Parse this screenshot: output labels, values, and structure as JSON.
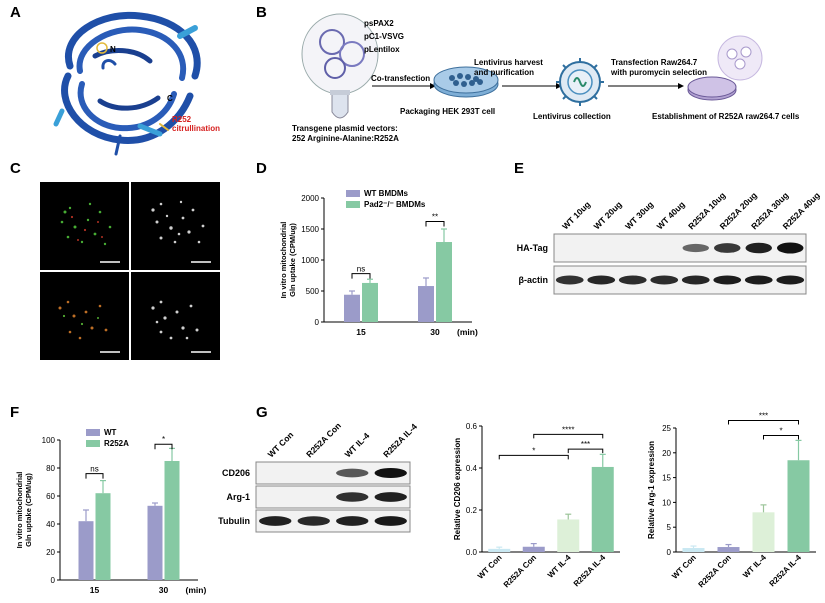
{
  "panels": {
    "A": {
      "letter": "A",
      "labels": {
        "n_term": "N",
        "c_term": "C",
        "site": "R252",
        "site_mod": "citrullination"
      },
      "colors": {
        "protein": "#1f4fa8",
        "highlight": "#3aa0d8",
        "label_red": "#d6201f"
      }
    },
    "B": {
      "letter": "B",
      "plasmids": [
        "psPAX2",
        "pC1-VSVG",
        "pLentilox"
      ],
      "tube_caption": [
        "Transgene plasmid vectors:",
        "252 Arginine-Alanine:R252A"
      ],
      "step1_arrow": "Co-transfection",
      "step2_caption": "Packaging HEK 293T cell",
      "step2_arrow": [
        "Lentivirus harvest",
        "and purification"
      ],
      "step3_caption": "Lentivirus collection",
      "step3_arrow": [
        "Transfection Raw264.7",
        "with puromycin selection"
      ],
      "step4_caption": "Establishment of R252A raw264.7 cells"
    },
    "C": {
      "letter": "C"
    },
    "D": {
      "letter": "D"
    },
    "E": {
      "letter": "E",
      "lanes": [
        "WT 10ug",
        "WT 20ug",
        "WT 30ug",
        "WT 40ug",
        "R252A 10ug",
        "R252A 20ug",
        "R252A 30ug",
        "R252A 40ug"
      ],
      "rows": [
        "HA-Tag",
        "β-actin"
      ],
      "ha_intensity": [
        0,
        0,
        0,
        0,
        0.45,
        0.75,
        0.9,
        1.0
      ],
      "actin_intensity": [
        0.85,
        0.9,
        0.88,
        0.88,
        0.9,
        0.95,
        0.95,
        0.95
      ]
    },
    "F": {
      "letter": "F"
    },
    "G": {
      "letter": "G",
      "blot_lanes": [
        "WT Con",
        "R252A Con",
        "WT IL-4",
        "R252A IL-4"
      ],
      "blot_rows": [
        "CD206",
        "Arg-1",
        "Tubulin"
      ],
      "cd206_intensity": [
        0,
        0,
        0.55,
        1.0
      ],
      "arg1_intensity": [
        0,
        0,
        0.8,
        0.9
      ],
      "tubulin_intensity": [
        0.9,
        0.85,
        0.9,
        0.95
      ]
    }
  },
  "chart_data": [
    {
      "id": "D",
      "type": "bar",
      "ylabel": "In vitro mitochondrial Gln uptake (CPM/ug)",
      "xlabel_unit": "(min)",
      "categories": [
        "15",
        "30"
      ],
      "ylim": [
        0,
        2000
      ],
      "yticks": [
        0,
        500,
        1000,
        1500,
        2000
      ],
      "series": [
        {
          "name": "WT BMDMs",
          "color": "#9b9bc9",
          "values": [
            440,
            580
          ],
          "errors": [
            60,
            130
          ]
        },
        {
          "name": "Pad2⁻/⁻ BMDMs",
          "color": "#86c9a3",
          "values": [
            630,
            1290
          ],
          "errors": [
            60,
            210
          ]
        }
      ],
      "significance": [
        {
          "group": 0,
          "label": "ns",
          "y": 780
        },
        {
          "group": 1,
          "label": "**",
          "y": 1620
        }
      ]
    },
    {
      "id": "F",
      "type": "bar",
      "ylabel": "In vitro mitochondrial Gln uptake (CPM/ug)",
      "xlabel_unit": "(min)",
      "categories": [
        "15",
        "30"
      ],
      "ylim": [
        0,
        100
      ],
      "yticks": [
        0,
        20,
        40,
        60,
        80,
        100
      ],
      "series": [
        {
          "name": "WT",
          "color": "#9b9bc9",
          "values": [
            42,
            53
          ],
          "errors": [
            8,
            2
          ]
        },
        {
          "name": "R252A",
          "color": "#86c9a3",
          "values": [
            62,
            85
          ],
          "errors": [
            9,
            9
          ]
        }
      ],
      "significance": [
        {
          "group": 0,
          "label": "ns",
          "y": 76
        },
        {
          "group": 1,
          "label": "*",
          "y": 97
        }
      ]
    },
    {
      "id": "G-CD206",
      "type": "bar",
      "ylabel": "Relative CD206 expression",
      "categories": [
        "WT Con",
        "R252A Con",
        "WT IL-4",
        "R252A IL-4"
      ],
      "ylim": [
        0,
        0.6
      ],
      "yticks": [
        "0.0",
        "0.2",
        "0.4",
        "0.6"
      ],
      "values": [
        0.015,
        0.025,
        0.155,
        0.405
      ],
      "errors": [
        0.008,
        0.015,
        0.025,
        0.06
      ],
      "colors": [
        "#c9e8f2",
        "#9b9bc9",
        "#ddf0d8",
        "#86c9a3"
      ],
      "brackets": [
        {
          "from": 2,
          "to": 3,
          "label": "***",
          "y": 0.49
        },
        {
          "from": 0,
          "to": 2,
          "label": "*",
          "y": 0.46
        },
        {
          "from": 1,
          "to": 3,
          "label": "****",
          "y": 0.56
        }
      ]
    },
    {
      "id": "G-Arg1",
      "type": "bar",
      "ylabel": "Relative Arg-1 expression",
      "categories": [
        "WT Con",
        "R252A Con",
        "WT IL-4",
        "R252A IL-4"
      ],
      "ylim": [
        0,
        25
      ],
      "yticks": [
        "0",
        "5",
        "10",
        "15",
        "20",
        "25"
      ],
      "values": [
        0.8,
        1.0,
        8.0,
        18.5
      ],
      "errors": [
        0.4,
        0.5,
        1.5,
        4.0
      ],
      "colors": [
        "#c9e8f2",
        "#9b9bc9",
        "#ddf0d8",
        "#86c9a3"
      ],
      "brackets": [
        {
          "from": 2,
          "to": 3,
          "label": "*",
          "y": 23.5
        },
        {
          "from": 1,
          "to": 3,
          "label": "***",
          "y": 26.5
        }
      ]
    }
  ]
}
